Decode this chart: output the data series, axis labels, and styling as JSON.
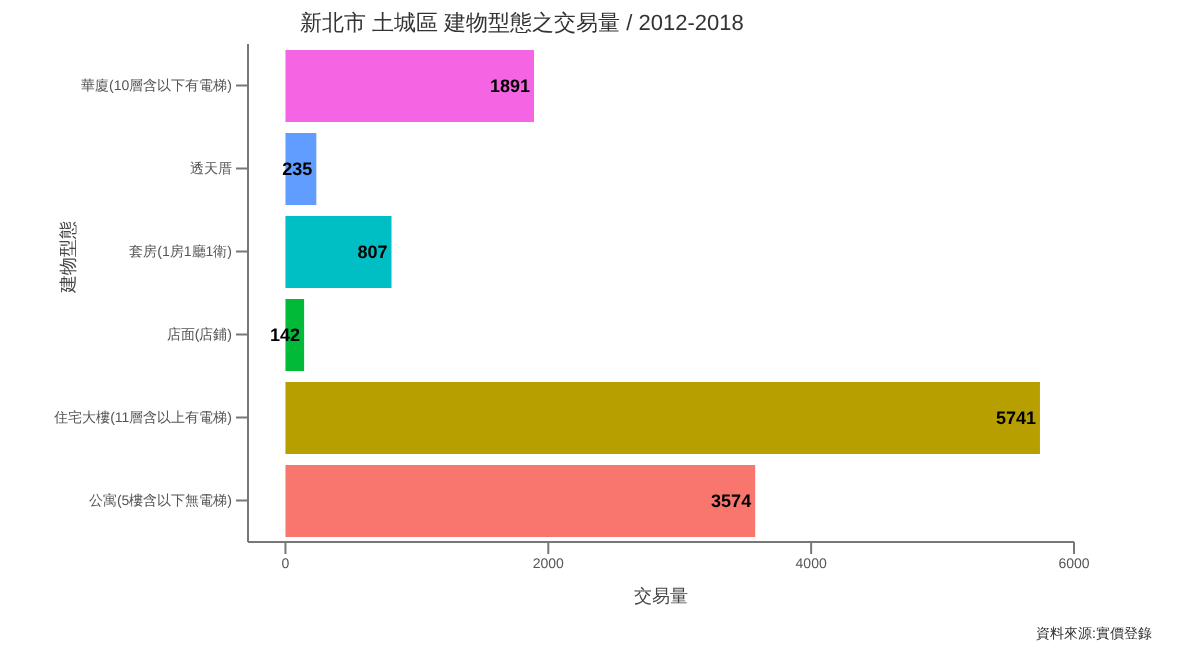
{
  "chart_data": {
    "type": "bar",
    "orientation": "horizontal",
    "title": "新北市 土城區 建物型態之交易量 / 2012-2018",
    "xlabel": "交易量",
    "ylabel": "建物型態",
    "categories": [
      "華廈(10層含以下有電梯)",
      "透天厝",
      "套房(1房1廳1衛)",
      "店面(店鋪)",
      "住宅大樓(11層含以上有電梯)",
      "公寓(5樓含以下無電梯)"
    ],
    "values": [
      1891,
      235,
      807,
      142,
      5741,
      3574
    ],
    "colors": [
      "#f564e3",
      "#619cff",
      "#00bfc4",
      "#00ba38",
      "#b79f00",
      "#f8766d"
    ],
    "xlim": [
      -285,
      6000
    ],
    "xticks": [
      0,
      2000,
      4000,
      6000
    ],
    "data_labels": true,
    "annotations": [
      "資料來源:實價登錄"
    ]
  }
}
